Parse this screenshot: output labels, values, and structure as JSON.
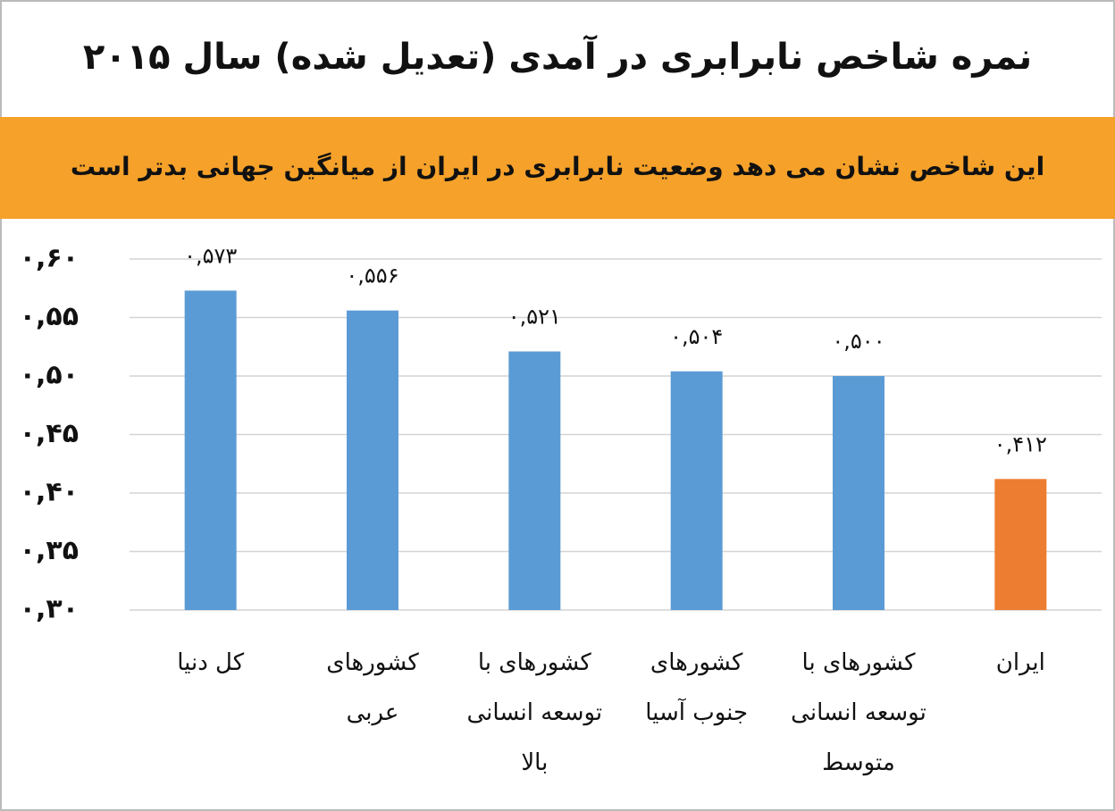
{
  "chart_data": {
    "type": "bar",
    "title": "نمره شاخص نابرابری در آمدی (تعدیل شده) سال ۲۰۱۵",
    "subtitle": "این شاخص نشان می دهد وضعیت نابرابری در ایران از میانگین جهانی بدتر است",
    "categories": [
      [
        "کل دنیا"
      ],
      [
        "کشورهای",
        "عربی"
      ],
      [
        "کشورهای با",
        "توسعه انسانی",
        "بالا"
      ],
      [
        "کشورهای",
        "جنوب آسیا"
      ],
      [
        "کشورهای با",
        "توسعه انسانی",
        "متوسط"
      ],
      [
        "ایران"
      ]
    ],
    "values": [
      0.573,
      0.556,
      0.521,
      0.504,
      0.5,
      0.412
    ],
    "value_labels": [
      "۰,۵۷۳",
      "۰,۵۵۶",
      "۰,۵۲۱",
      "۰,۵۰۴",
      "۰,۵۰۰",
      "۰,۴۱۲"
    ],
    "colors": [
      "#5b9bd5",
      "#5b9bd5",
      "#5b9bd5",
      "#5b9bd5",
      "#5b9bd5",
      "#ed7d31"
    ],
    "ylim": [
      0.3,
      0.6
    ],
    "yticks": [
      {
        "value": 0.6,
        "label": "۰,۶۰"
      },
      {
        "value": 0.55,
        "label": "۰,۵۵"
      },
      {
        "value": 0.5,
        "label": "۰,۵۰"
      },
      {
        "value": 0.45,
        "label": "۰,۴۵"
      },
      {
        "value": 0.4,
        "label": "۰,۴۰"
      },
      {
        "value": 0.35,
        "label": "۰,۳۵"
      },
      {
        "value": 0.3,
        "label": "۰,۳۰"
      }
    ],
    "grid": true
  }
}
